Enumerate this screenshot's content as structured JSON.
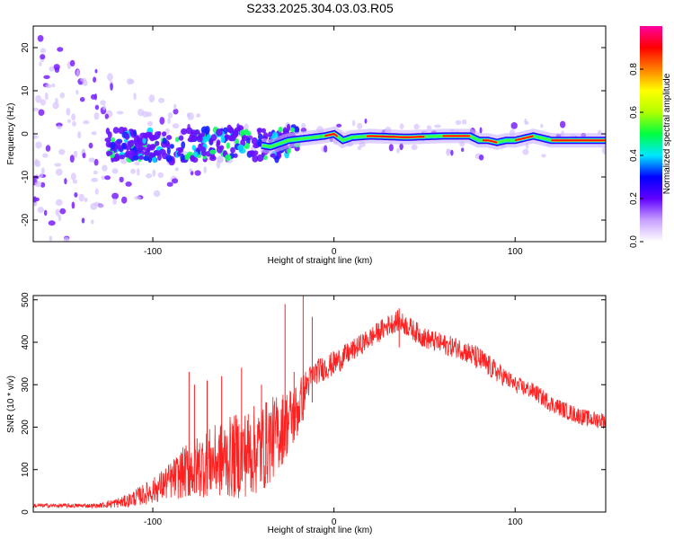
{
  "title": "S233.2025.304.03.03.R05",
  "chart_data": [
    {
      "type": "heatmap",
      "panel": "spectrogram",
      "xlabel": "Height of straight line (km)",
      "ylabel": "Frequency (Hz)",
      "xlim": [
        -166,
        150
      ],
      "ylim": [
        -25,
        25
      ],
      "xticks": [
        -100,
        0,
        100
      ],
      "xtick_labels": [
        "-100",
        "0",
        "100"
      ],
      "yticks": [
        20,
        10,
        0,
        -10,
        -20
      ],
      "ytick_labels": [
        "20",
        "10",
        "0",
        "-10",
        "-20"
      ],
      "ridge": {
        "x": [
          -130,
          -110,
          -90,
          -70,
          -50,
          -35,
          -25,
          -15,
          -5,
          0,
          5,
          10,
          20,
          40,
          60,
          75,
          80,
          85,
          90,
          95,
          100,
          110,
          115,
          120,
          135,
          150
        ],
        "y": [
          -2.5,
          -2.5,
          -3,
          -2.5,
          -2,
          -3,
          -1.5,
          -1,
          -0.5,
          0,
          -1.5,
          -0.8,
          -0.5,
          -0.8,
          -0.5,
          -0.5,
          -1.5,
          -1.5,
          -2,
          -1.5,
          -1.5,
          -0.5,
          -1,
          -1.5,
          -1.5,
          -1.5
        ]
      },
      "colorbar": {
        "label": "Normalized spectral amplitude",
        "range": [
          0,
          1
        ],
        "ticks": [
          0.0,
          0.2,
          0.4,
          0.6,
          0.8
        ],
        "tick_labels": [
          "0.0",
          "0.2",
          "0.4",
          "0.6",
          "0.8"
        ],
        "colors": [
          "#ffffff",
          "#c8a0ff",
          "#6000ff",
          "#0000ff",
          "#00e8ff",
          "#00ff40",
          "#b0ff00",
          "#ffff00",
          "#ff8000",
          "#ff0000",
          "#ff00a0"
        ]
      }
    },
    {
      "type": "line",
      "panel": "snr",
      "xlabel": "Height of straight line (km)",
      "ylabel": "SNR (10 * v/v)",
      "xlim": [
        -166,
        150
      ],
      "ylim": [
        0,
        510
      ],
      "xticks": [
        -100,
        0,
        100
      ],
      "xtick_labels": [
        "-100",
        "0",
        "100"
      ],
      "yticks": [
        0,
        100,
        200,
        300,
        400,
        500
      ],
      "ytick_labels": [
        "0",
        "100",
        "200",
        "300",
        "400",
        "500"
      ],
      "series": [
        {
          "name": "SNR",
          "color": "#ff2020",
          "envelope_x": [
            -166,
            -130,
            -115,
            -100,
            -90,
            -80,
            -70,
            -55,
            -40,
            -30,
            -20,
            -15,
            -10,
            0,
            10,
            20,
            30,
            35,
            40,
            50,
            60,
            70,
            80,
            90,
            100,
            110,
            120,
            130,
            140,
            150
          ],
          "envelope_y": [
            15,
            15,
            25,
            50,
            75,
            100,
            115,
            130,
            150,
            190,
            240,
            300,
            330,
            350,
            380,
            410,
            440,
            450,
            440,
            410,
            395,
            385,
            360,
            330,
            300,
            285,
            255,
            235,
            220,
            215
          ],
          "noise": [
            5,
            5,
            15,
            30,
            45,
            70,
            80,
            100,
            110,
            90,
            70,
            40,
            30,
            30,
            25,
            25,
            25,
            25,
            25,
            25,
            25,
            25,
            30,
            25,
            20,
            20,
            20,
            20,
            20,
            20
          ],
          "spikes": [
            {
              "x": -80,
              "y": 330
            },
            {
              "x": -77,
              "y": 300
            },
            {
              "x": -70,
              "y": 310
            },
            {
              "x": -62,
              "y": 320
            },
            {
              "x": -51,
              "y": 340
            },
            {
              "x": -40,
              "y": 300
            },
            {
              "x": -27,
              "y": 490
            },
            {
              "x": -22,
              "y": 330
            },
            {
              "x": -17,
              "y": 510
            },
            {
              "x": -12,
              "y": 460
            },
            {
              "x": 36,
              "y": 480
            }
          ]
        }
      ]
    }
  ]
}
